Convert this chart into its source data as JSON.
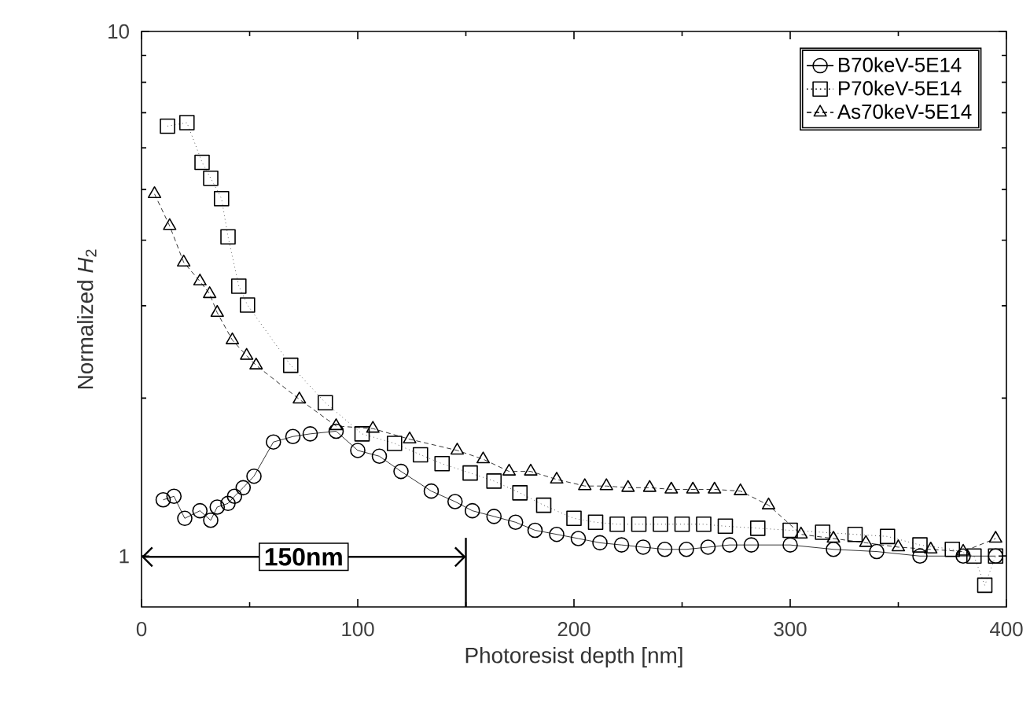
{
  "chart_data": {
    "type": "line",
    "xlabel": "Photoresist depth [nm]",
    "ylabel": "Normalized *H*$_{2}$",
    "xlim": [
      0,
      400
    ],
    "ylim": [
      0.8,
      10
    ],
    "xticks": [
      0,
      100,
      200,
      300,
      400
    ],
    "yticks": [
      1,
      10
    ],
    "log": "y",
    "grid": false,
    "legend": "top right",
    "series": [
      {
        "name": "B70keV-5E14",
        "color": "#000000",
        "marker": "circle",
        "line_style": "solid",
        "x": [
          10,
          15,
          20,
          27,
          32,
          35,
          40,
          43,
          47,
          52,
          61,
          70,
          78,
          90,
          100,
          110,
          120,
          134,
          145,
          153,
          163,
          173,
          182,
          192,
          202,
          212,
          222,
          232,
          242,
          252,
          262,
          272,
          282,
          300,
          320,
          340,
          360,
          380,
          395
        ],
        "values": [
          1.28,
          1.3,
          1.18,
          1.22,
          1.17,
          1.24,
          1.26,
          1.3,
          1.35,
          1.42,
          1.65,
          1.69,
          1.71,
          1.73,
          1.59,
          1.55,
          1.45,
          1.33,
          1.27,
          1.22,
          1.19,
          1.16,
          1.12,
          1.1,
          1.08,
          1.06,
          1.05,
          1.04,
          1.03,
          1.03,
          1.04,
          1.05,
          1.05,
          1.05,
          1.03,
          1.02,
          1.0,
          1.0,
          1.0
        ]
      },
      {
        "name": "P70keV-5E14",
        "color": "#000000",
        "marker": "square",
        "line_style": "dotted",
        "x": [
          12,
          21,
          28,
          32,
          37,
          40,
          45,
          49,
          69,
          85,
          102,
          117,
          129,
          139,
          152,
          163,
          175,
          186,
          200,
          210,
          220,
          230,
          240,
          250,
          260,
          270,
          285,
          300,
          315,
          330,
          345,
          360,
          375,
          385,
          390,
          395
        ],
        "values": [
          6.6,
          6.7,
          5.63,
          5.25,
          4.8,
          4.06,
          3.27,
          3.01,
          2.31,
          1.96,
          1.71,
          1.64,
          1.56,
          1.5,
          1.44,
          1.39,
          1.32,
          1.25,
          1.18,
          1.16,
          1.15,
          1.15,
          1.15,
          1.15,
          1.15,
          1.14,
          1.13,
          1.12,
          1.11,
          1.1,
          1.09,
          1.05,
          1.03,
          1.0,
          0.88,
          1.0
        ]
      },
      {
        "name": "As70keV-5E14",
        "color": "#000000",
        "marker": "triangle",
        "line_style": "dashed",
        "x": [
          6,
          13,
          19.5,
          27,
          31.5,
          35,
          42,
          48.6,
          53,
          73,
          90,
          107,
          124,
          146,
          158,
          170,
          180,
          192,
          205,
          215,
          225,
          235,
          245,
          255,
          265,
          277,
          290,
          305,
          320,
          335,
          350,
          365,
          380,
          395
        ],
        "values": [
          4.9,
          4.26,
          3.63,
          3.34,
          3.16,
          2.91,
          2.58,
          2.41,
          2.31,
          1.99,
          1.77,
          1.75,
          1.67,
          1.59,
          1.53,
          1.45,
          1.45,
          1.4,
          1.36,
          1.36,
          1.35,
          1.35,
          1.34,
          1.34,
          1.34,
          1.33,
          1.25,
          1.1,
          1.08,
          1.06,
          1.04,
          1.03,
          1.02,
          1.08
        ]
      }
    ],
    "ref_lines": [
      {
        "axis": "x",
        "value": 150
      }
    ],
    "annotations": [
      "150nm"
    ]
  }
}
